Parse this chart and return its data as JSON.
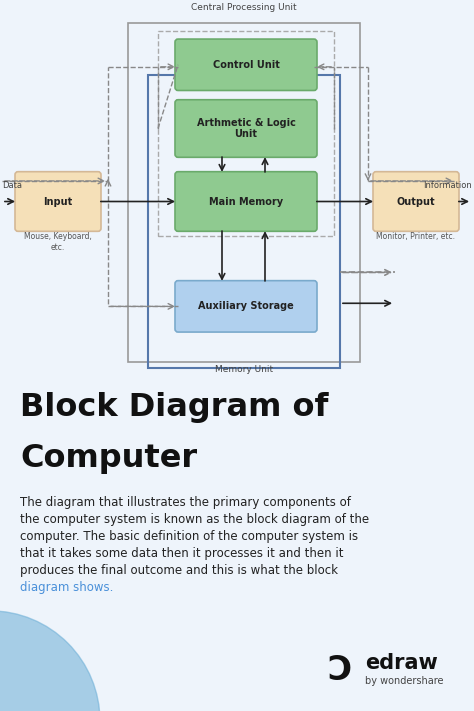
{
  "bg_color": "#eef4fb",
  "bottom_bg": "#e8f0f8",
  "green_box_color": "#8fca90",
  "green_box_edge": "#6aaa6b",
  "blue_box_color": "#b0d0ee",
  "blue_box_edge": "#7aaacc",
  "peach_box_color": "#f5e0b8",
  "peach_box_edge": "#d4b896",
  "memory_border": "#5577aa",
  "cpu_border": "#999999",
  "dash_color": "#888888",
  "arrow_color": "#222222",
  "cpu_label": "Central Processing Unit",
  "memory_label": "Memory Unit",
  "control_label": "Control Unit",
  "alu_label": "Arthmetic & Logic\nUnit",
  "main_memory_label": "Main Memory",
  "aux_label": "Auxiliary Storage",
  "input_label": "Input",
  "output_label": "Output",
  "data_label": "Data",
  "info_label": "Information",
  "mouse_label": "Mouse, Keyboard,\netc.",
  "monitor_label": "Monitor, Printer, etc.",
  "title_line1": "Block Diagram of",
  "title_line2": "Computer",
  "body_text": "The diagram that illustrates the primary components of\nthe computer system is known as the block diagram of the\ncomputer. The basic definition of the computer system is\nthat it takes some data then it processes it and then it\nproduces the final outcome and this is what the block\ndiagram shows.",
  "link_color": "#4a90d9",
  "circle_color": "#6baed6"
}
